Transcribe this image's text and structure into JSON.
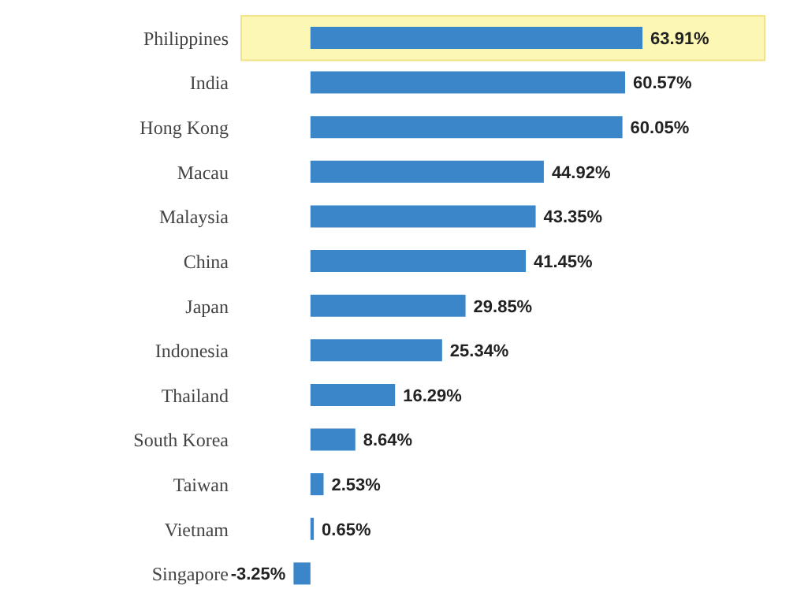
{
  "chart_data": {
    "type": "bar",
    "orientation": "horizontal",
    "categories": [
      "Philippines",
      "India",
      "Hong Kong",
      "Macau",
      "Malaysia",
      "China",
      "Japan",
      "Indonesia",
      "Thailand",
      "South Korea",
      "Taiwan",
      "Vietnam",
      "Singapore"
    ],
    "values": [
      63.91,
      60.57,
      60.05,
      44.92,
      43.35,
      41.45,
      29.85,
      25.34,
      16.29,
      8.64,
      2.53,
      0.65,
      -3.25
    ],
    "value_labels": [
      "63.91%",
      "60.57%",
      "60.05%",
      "44.92%",
      "43.35%",
      "41.45%",
      "29.85%",
      "25.34%",
      "16.29%",
      "8.64%",
      "2.53%",
      "0.65%",
      "-3.25%"
    ],
    "color": "#3a86c8",
    "bands": [
      {
        "axis": "y",
        "from": "Philippines",
        "to": "Philippines",
        "color": "#fdf7b6"
      }
    ],
    "grid": false,
    "legend": false
  }
}
